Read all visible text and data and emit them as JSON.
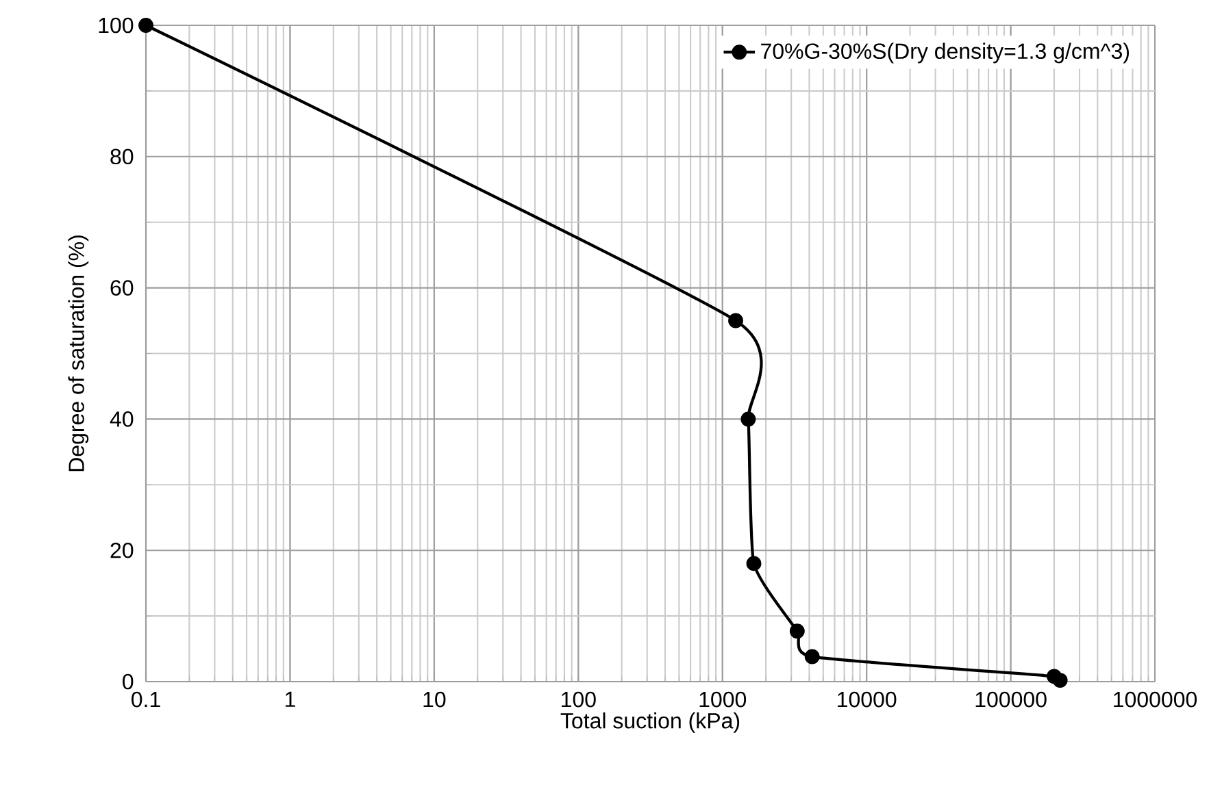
{
  "chart_data": {
    "type": "line",
    "xlabel": "Total suction  (kPa)",
    "ylabel": "Degree of saturation  (%)",
    "log": "x",
    "grid": true,
    "legend": "top right",
    "marker": "circle",
    "line_style": "solid",
    "xlim": [
      0.1,
      1000000
    ],
    "ylim": [
      0,
      100
    ],
    "xticks": [
      0.1,
      1,
      10,
      100,
      1000,
      10000,
      100000,
      1000000
    ],
    "yticks": [
      0,
      20,
      40,
      60,
      80,
      100
    ],
    "series": [
      {
        "name": "70%G-30%S(Dry density=1.3 g/cm^3)",
        "color": "#000000",
        "x": [
          0.1,
          1235,
          1510,
          1650,
          3300,
          4190,
          200000,
          220000
        ],
        "values": [
          100,
          55,
          40,
          18,
          7.7,
          3.8,
          0.8,
          0.2
        ]
      }
    ]
  }
}
